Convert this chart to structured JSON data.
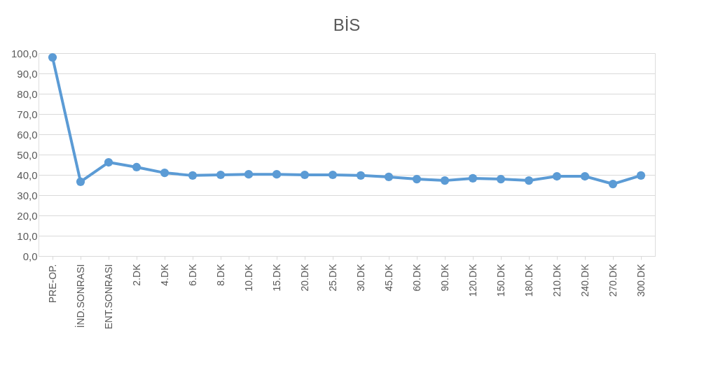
{
  "chart_data": {
    "type": "line",
    "title": "BİS",
    "categories": [
      "PRE-OP.",
      "İND.SONRASI",
      "ENT.SONRASI",
      "2.DK",
      "4.DK",
      "6.DK",
      "8.DK",
      "10.DK",
      "15.DK",
      "20.DK",
      "25.DK",
      "30.DK",
      "45.DK",
      "60.DK",
      "90.DK",
      "120.DK",
      "150.DK",
      "180.DK",
      "210.DK",
      "240.DK",
      "270.DK",
      "300.DK"
    ],
    "series": [
      {
        "color": "#5b9bd5",
        "values": [
          97.9,
          36.6,
          46.2,
          43.8,
          41.0,
          39.7,
          40.0,
          40.3,
          40.3,
          40.0,
          40.0,
          39.7,
          39.0,
          37.9,
          37.2,
          38.3,
          37.9,
          37.2,
          39.3,
          39.3,
          35.5,
          39.7
        ]
      }
    ],
    "ylim": [
      0,
      100
    ],
    "yticks": [
      {
        "value": 0,
        "label": "0,0"
      },
      {
        "value": 10,
        "label": "10,0"
      },
      {
        "value": 20,
        "label": "20,0"
      },
      {
        "value": 30,
        "label": "30,0"
      },
      {
        "value": 40,
        "label": "40,0"
      },
      {
        "value": 50,
        "label": "50,0"
      },
      {
        "value": 60,
        "label": "60,0"
      },
      {
        "value": 70,
        "label": "70,0"
      },
      {
        "value": 80,
        "label": "80,0"
      },
      {
        "value": 90,
        "label": "90,0"
      },
      {
        "value": 100,
        "label": "100,0"
      }
    ],
    "grid": "y",
    "legend": false,
    "marker": "circle",
    "line_style": "solid"
  }
}
